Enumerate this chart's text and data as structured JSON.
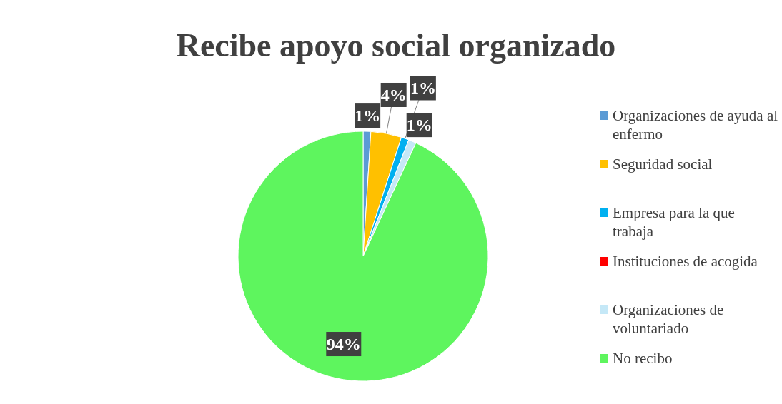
{
  "chart_data": {
    "type": "pie",
    "title": "Recibe apoyo social organizado",
    "categories": [
      "Organizaciones de ayuda al enfermo",
      "Seguridad social",
      "Empresa para la que trabaja",
      "Instituciones de acogida",
      "Organizaciones de voluntariado",
      "No recibo"
    ],
    "values": [
      1,
      4,
      1,
      0,
      1,
      94
    ],
    "value_labels": [
      "1%",
      "4%",
      "1%",
      null,
      "1%",
      "94%"
    ],
    "colors": [
      "#5b9bd5",
      "#ffc000",
      "#00b0f0",
      "#ff0000",
      "#c5e8f7",
      "#5ef55e"
    ],
    "legend": "right"
  }
}
